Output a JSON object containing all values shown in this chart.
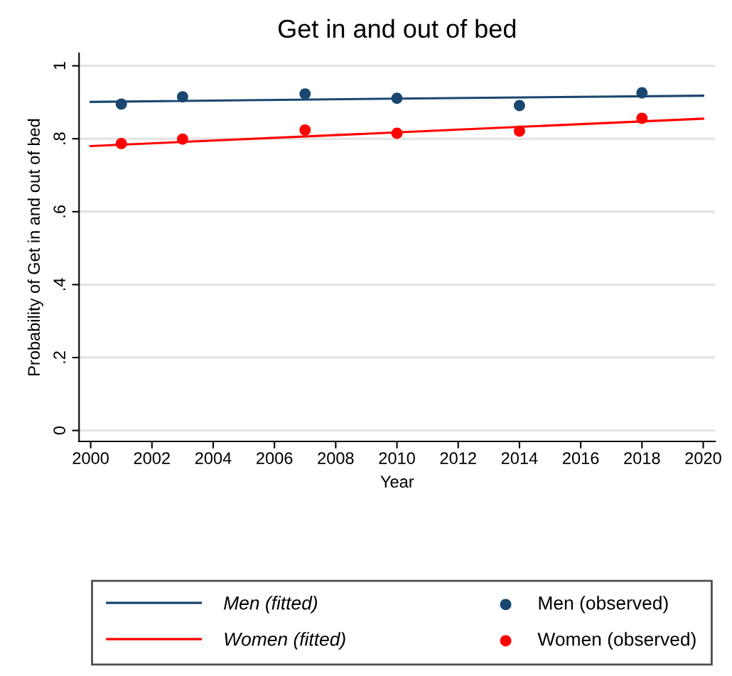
{
  "chart_data": {
    "type": "scatter",
    "title": "Get in and out of bed",
    "xlabel": "Year",
    "ylabel": "Probability of Get in and out of bed",
    "xlim": [
      1999.62,
      2020.39
    ],
    "xticks": [
      2000,
      2002,
      2004,
      2006,
      2008,
      2010,
      2012,
      2014,
      2016,
      2018,
      2020
    ],
    "ylim": [
      -0.03,
      1.034
    ],
    "yticks": [
      {
        "value": 0,
        "label": "0"
      },
      {
        "value": 0.2,
        "label": ".2"
      },
      {
        "value": 0.4,
        "label": ".4"
      },
      {
        "value": 0.6,
        "label": ".6"
      },
      {
        "value": 0.8,
        "label": ".8"
      },
      {
        "value": 1,
        "label": "1"
      }
    ],
    "grid": "y",
    "legend": "bottom",
    "marker": "circle",
    "series": [
      {
        "name": "Men (fitted)",
        "type": "line",
        "marker": "none",
        "color": "#1a476f",
        "x": [
          2000,
          2010,
          2020
        ],
        "values": [
          0.901,
          0.91,
          0.918
        ]
      },
      {
        "name": "Men (observed)",
        "color": "#1a476f",
        "x": [
          2001,
          2003,
          2007,
          2010,
          2014,
          2018
        ],
        "values": [
          0.895,
          0.915,
          0.923,
          0.911,
          0.891,
          0.926
        ]
      },
      {
        "name": "Women (fitted)",
        "type": "line",
        "marker": "none",
        "color": "#ff0000",
        "x": [
          2000,
          2020
        ],
        "values": [
          0.78,
          0.855
        ]
      },
      {
        "name": "Women (observed)",
        "color": "#ff0000",
        "x": [
          2001,
          2003,
          2007,
          2010,
          2014,
          2018
        ],
        "values": [
          0.787,
          0.799,
          0.824,
          0.815,
          0.821,
          0.856
        ]
      }
    ]
  }
}
